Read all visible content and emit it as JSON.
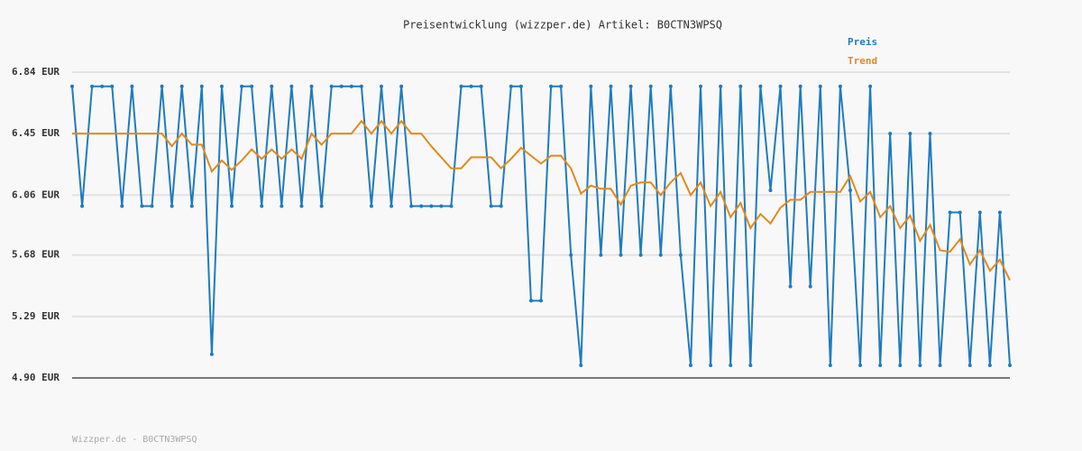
{
  "chart_data": {
    "type": "line",
    "title": "Preisentwicklung (wizzper.de) Artikel: B0CTN3WPSQ",
    "footer": "Wizzper.de - B0CTN3WPSQ",
    "legend": "top-right",
    "grid": true,
    "ylim": [
      4.9,
      6.84
    ],
    "yticks": [
      {
        "value": 4.9,
        "label": "4.90 EUR"
      },
      {
        "value": 5.29,
        "label": "5.29 EUR"
      },
      {
        "value": 5.68,
        "label": "5.68 EUR"
      },
      {
        "value": 6.06,
        "label": "6.06 EUR"
      },
      {
        "value": 6.45,
        "label": "6.45 EUR"
      },
      {
        "value": 6.84,
        "label": "6.84 EUR"
      }
    ],
    "series": [
      {
        "name": "Preis",
        "color": "#1f7bbf",
        "markers": true,
        "values": [
          6.75,
          5.99,
          6.75,
          6.75,
          6.75,
          5.99,
          6.75,
          5.99,
          5.99,
          6.75,
          5.99,
          6.75,
          5.99,
          6.75,
          5.05,
          6.75,
          5.99,
          6.75,
          6.75,
          5.99,
          6.75,
          5.99,
          6.75,
          5.99,
          6.75,
          5.99,
          6.75,
          6.75,
          6.75,
          6.75,
          5.99,
          6.75,
          5.99,
          6.75,
          5.99,
          5.99,
          5.99,
          5.99,
          5.99,
          6.75,
          6.75,
          6.75,
          5.99,
          5.99,
          6.75,
          6.75,
          5.39,
          5.39,
          6.75,
          6.75,
          5.68,
          4.98,
          6.75,
          5.68,
          6.75,
          5.68,
          6.75,
          5.68,
          6.75,
          5.68,
          6.75,
          5.68,
          4.98,
          6.75,
          4.98,
          6.75,
          4.98,
          6.75,
          4.98,
          6.75,
          6.09,
          6.75,
          5.48,
          6.75,
          5.48,
          6.75,
          4.98,
          6.75,
          6.09,
          4.98,
          6.75,
          4.98,
          6.45,
          4.98,
          6.45,
          4.98,
          6.45,
          4.98,
          5.95,
          5.95,
          4.98,
          5.95,
          4.98,
          5.95,
          4.98
        ]
      },
      {
        "name": "Trend",
        "color": "#e08a1e",
        "markers": false,
        "values": [
          6.45,
          6.45,
          6.45,
          6.45,
          6.45,
          6.45,
          6.45,
          6.45,
          6.45,
          6.45,
          6.37,
          6.45,
          6.38,
          6.38,
          6.21,
          6.28,
          6.22,
          6.28,
          6.35,
          6.29,
          6.35,
          6.29,
          6.35,
          6.29,
          6.45,
          6.38,
          6.45,
          6.45,
          6.45,
          6.53,
          6.45,
          6.53,
          6.45,
          6.53,
          6.45,
          6.45,
          6.37,
          6.3,
          6.23,
          6.23,
          6.3,
          6.3,
          6.3,
          6.23,
          6.29,
          6.36,
          6.31,
          6.26,
          6.31,
          6.31,
          6.23,
          6.07,
          6.12,
          6.1,
          6.1,
          6.0,
          6.12,
          6.14,
          6.14,
          6.06,
          6.14,
          6.2,
          6.06,
          6.14,
          5.99,
          6.08,
          5.92,
          6.01,
          5.85,
          5.94,
          5.88,
          5.98,
          6.03,
          6.03,
          6.08,
          6.08,
          6.08,
          6.08,
          6.18,
          6.02,
          6.08,
          5.92,
          5.99,
          5.85,
          5.93,
          5.77,
          5.87,
          5.71,
          5.7,
          5.78,
          5.62,
          5.71,
          5.58,
          5.65,
          5.52
        ]
      }
    ]
  }
}
